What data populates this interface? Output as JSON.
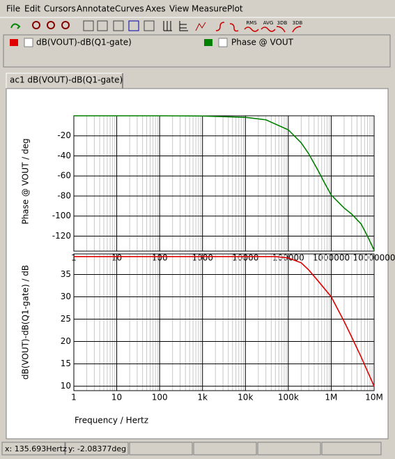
{
  "menu": [
    "File",
    "Edit",
    "Cursors",
    "Annotate",
    "Curves",
    "Axes",
    "View",
    "Measure",
    "Plot"
  ],
  "toolbar": {
    "labels": [
      "RMS",
      "AVG",
      "3DB",
      "3DB"
    ]
  },
  "tab": "ac1 dB(VOUT)-dB(Q1-gate)",
  "chart_data": [
    {
      "type": "line",
      "y_label": "Phase @ VOUT / deg",
      "log_x": true,
      "grid": true,
      "x": [
        1,
        100,
        1000,
        10000,
        30000,
        100000,
        200000,
        300000,
        500000,
        700000,
        1000000,
        2000000,
        3000000,
        5000000,
        7000000,
        10000000
      ],
      "series": [
        {
          "name": "Phase @ VOUT",
          "color": "#007f00",
          "values": [
            0,
            0,
            -0.2,
            -1.5,
            -4,
            -14,
            -27,
            -38,
            -55,
            -67,
            -79,
            -92,
            -98,
            -108,
            -120,
            -134
          ]
        }
      ],
      "xlim": [
        1,
        10000000
      ],
      "xticks": [
        1,
        10,
        100,
        1000,
        10000,
        100000,
        1000000,
        10000000
      ],
      "ylim": [
        -135,
        0
      ],
      "yticks": [
        -20,
        -40,
        -60,
        -80,
        -100,
        -120
      ]
    },
    {
      "type": "line",
      "y_label": "dB(VOUT)-dB(Q1-gate) / dB",
      "x_label": "Frequency / Hertz",
      "log_x": true,
      "grid": true,
      "x": [
        1,
        100,
        10000,
        50000,
        100000,
        200000,
        300000,
        500000,
        1000000,
        2000000,
        3000000,
        5000000,
        10000000
      ],
      "series": [
        {
          "name": "dB(VOUT)-dB(Q1-gate)",
          "color": "#e00000",
          "values": [
            39,
            39,
            39,
            39,
            38.7,
            37.6,
            36,
            33.5,
            30,
            24.5,
            21,
            16.5,
            10
          ]
        }
      ],
      "xlim": [
        1,
        10000000
      ],
      "xticks": [
        1,
        10,
        100,
        {
          "value": 1000,
          "label": "1k"
        },
        {
          "value": 10000,
          "label": "10k"
        },
        {
          "value": 100000,
          "label": "100k"
        },
        {
          "value": 1000000,
          "label": "1M"
        },
        {
          "value": 10000000,
          "label": "10M"
        }
      ],
      "ylim": [
        9,
        39.6
      ],
      "yticks": [
        10,
        15,
        20,
        25,
        30,
        35
      ]
    }
  ],
  "status": [
    "x: 135.693Hertz",
    "y: -2.08377deg"
  ]
}
